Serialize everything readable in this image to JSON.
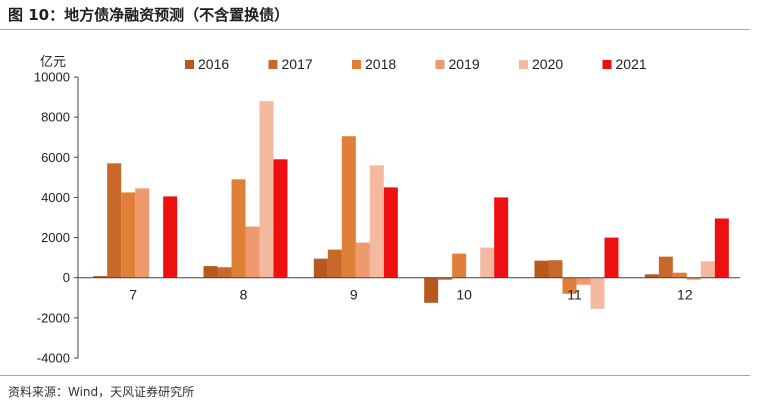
{
  "figure": {
    "title": "图 10：地方债净融资预测（不含置换债）",
    "source": "资料来源：Wind，天风证券研究所"
  },
  "chart_data": {
    "type": "bar",
    "title": "",
    "ylabel": "亿元",
    "xlabel": "",
    "ylim": [
      -4000,
      10000
    ],
    "yticks": [
      -4000,
      -2000,
      0,
      2000,
      4000,
      6000,
      8000,
      10000
    ],
    "categories": [
      "7",
      "8",
      "9",
      "10",
      "11",
      "12"
    ],
    "legend_position": "top",
    "grid": false,
    "series": [
      {
        "name": "2016",
        "color": "#b5591f",
        "values": [
          80,
          580,
          950,
          -1250,
          850,
          170
        ]
      },
      {
        "name": "2017",
        "color": "#c8682a",
        "values": [
          5700,
          520,
          1400,
          -100,
          870,
          1050
        ]
      },
      {
        "name": "2018",
        "color": "#e07f38",
        "values": [
          4250,
          4900,
          7050,
          1200,
          -800,
          250
        ]
      },
      {
        "name": "2019",
        "color": "#ef9a6e",
        "values": [
          4450,
          2550,
          1750,
          0,
          -350,
          -100
        ]
      },
      {
        "name": "2020",
        "color": "#f5b9a0",
        "values": [
          0,
          8800,
          5600,
          1500,
          -1550,
          820
        ]
      },
      {
        "name": "2021",
        "color": "#ee1010",
        "values": [
          4050,
          5900,
          4500,
          4000,
          2000,
          2950
        ]
      }
    ]
  }
}
